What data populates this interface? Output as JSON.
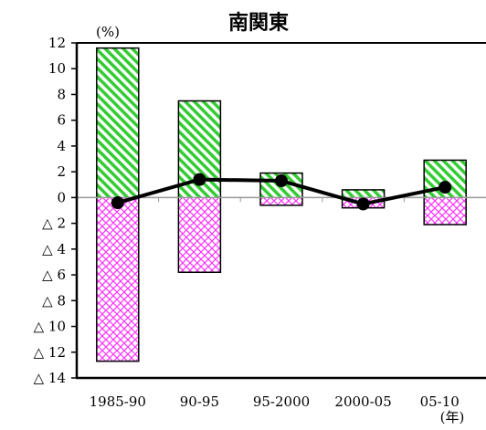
{
  "chart_data": {
    "type": "bar",
    "title": "南関東",
    "unit_y": "(%)",
    "unit_x": "(年)",
    "categories": [
      "1985-90",
      "90-95",
      "95-2000",
      "2000-05",
      "05-10"
    ],
    "ylim": [
      -14,
      12
    ],
    "y_ticks": [
      {
        "value": 12,
        "label": "12"
      },
      {
        "value": 10,
        "label": "10"
      },
      {
        "value": 8,
        "label": "8"
      },
      {
        "value": 6,
        "label": "6"
      },
      {
        "value": 4,
        "label": "4"
      },
      {
        "value": 2,
        "label": "2"
      },
      {
        "value": 0,
        "label": "0"
      },
      {
        "value": -2,
        "label": "△ 2"
      },
      {
        "value": -4,
        "label": "△ 4"
      },
      {
        "value": -6,
        "label": "△ 6"
      },
      {
        "value": -8,
        "label": "△ 8"
      },
      {
        "value": -10,
        "label": "△ 10"
      },
      {
        "value": -12,
        "label": "△ 12"
      },
      {
        "value": -14,
        "label": "△ 14"
      }
    ],
    "bar_top": [
      11.6,
      7.5,
      1.9,
      0.6,
      2.9
    ],
    "bar_bottom": [
      -12.7,
      -5.8,
      -0.6,
      -0.8,
      -2.1
    ],
    "line": [
      -0.4,
      1.4,
      1.3,
      -0.5,
      0.8
    ],
    "colors": {
      "positive": "#33cc33",
      "negative": "#ff33ff",
      "line": "#000000",
      "axis": "#000000",
      "zero": "#999999"
    },
    "grid": false
  }
}
